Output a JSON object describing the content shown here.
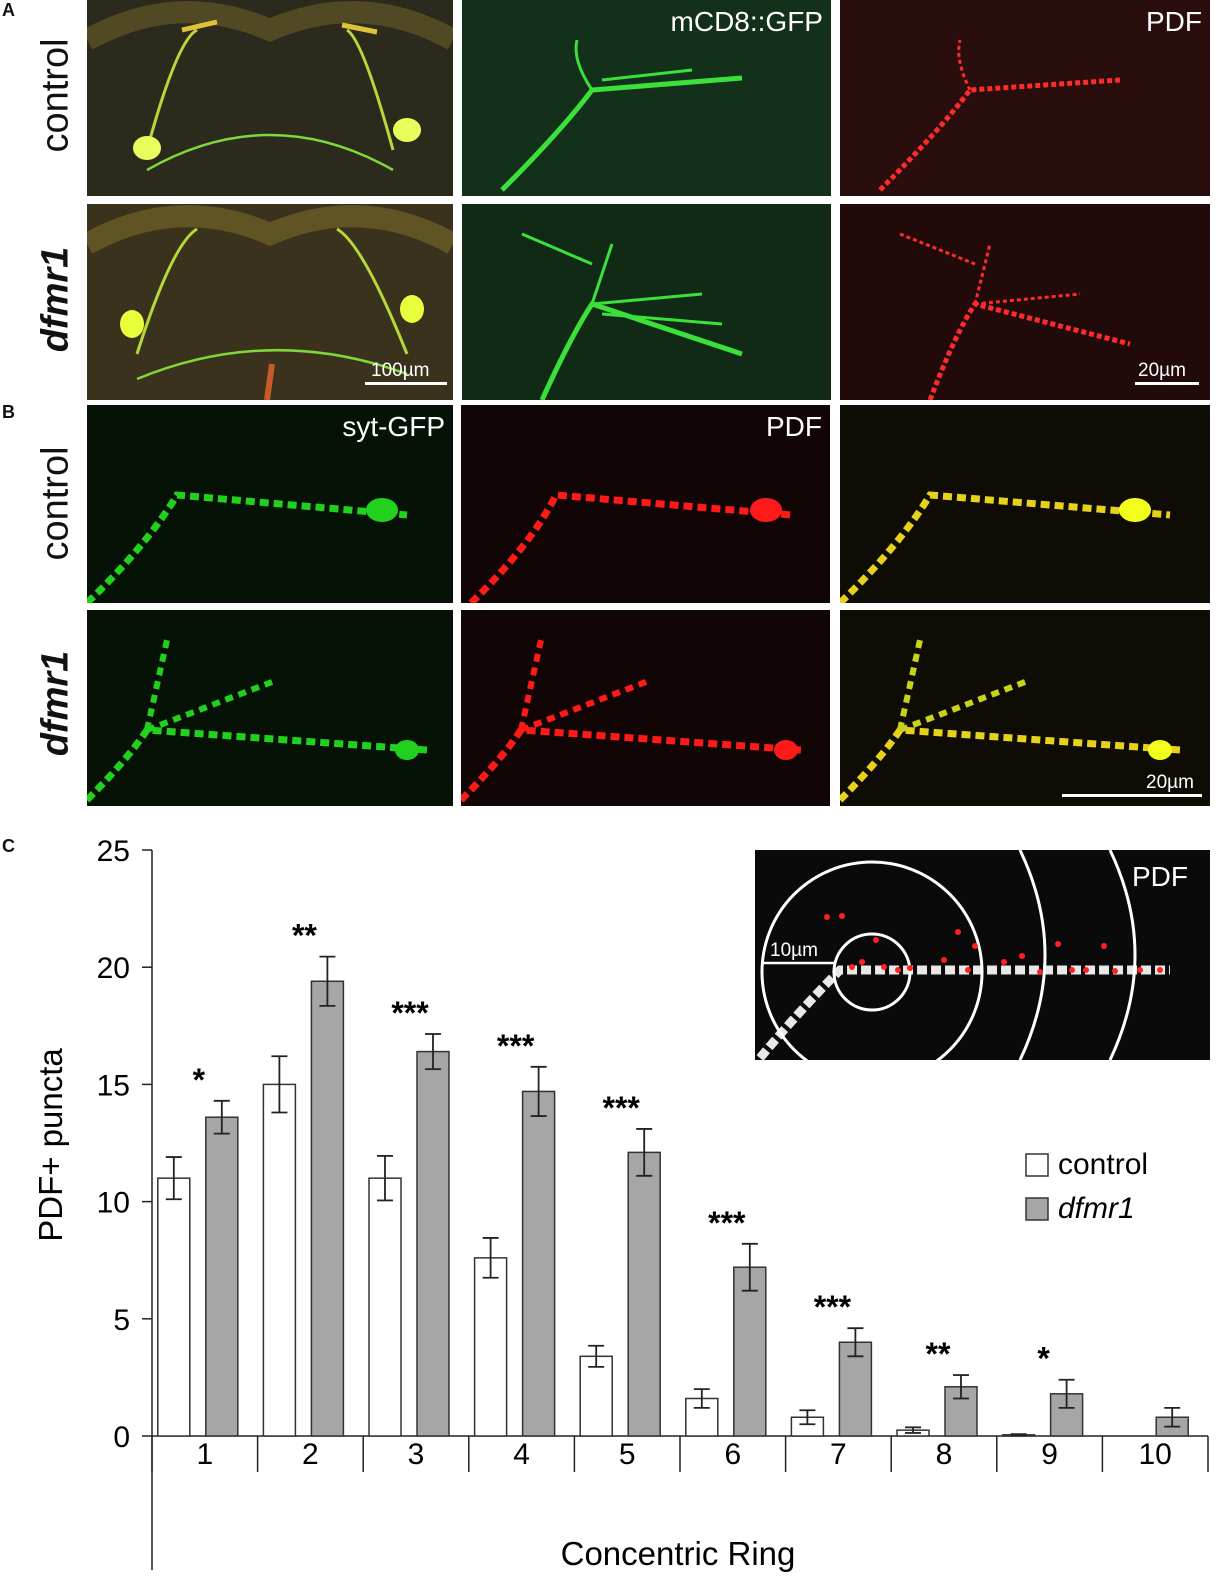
{
  "panels": {
    "a": {
      "letter": "A"
    },
    "b": {
      "letter": "B"
    },
    "c": {
      "letter": "C"
    }
  },
  "rows": {
    "control": "control",
    "dfmr1": "dfmr1"
  },
  "channel_labels": {
    "mcd8": "mCD8::GFP",
    "pdf_a": "PDF",
    "sytgfp": "syt-GFP",
    "pdf_b": "PDF"
  },
  "scale_bars": {
    "a_brain": "100µm",
    "a_zoom": "20µm",
    "b": "20µm"
  },
  "inset": {
    "label": "PDF",
    "scale_label": "10µm"
  },
  "colors": {
    "control_fill": "#ffffff",
    "dfmr1_fill": "#a6a6a6",
    "gfp": "#22d11e",
    "pdf": "#ff1a1a",
    "merge": "#e6d21a"
  },
  "chart_data": {
    "type": "bar",
    "categories": [
      "1",
      "2",
      "3",
      "4",
      "5",
      "6",
      "7",
      "8",
      "9",
      "10"
    ],
    "xlabel": "Concentric Ring",
    "ylabel": "PDF+ puncta",
    "ylim": [
      0,
      25
    ],
    "yticks": [
      "0",
      "5",
      "10",
      "15",
      "20",
      "25"
    ],
    "legend_position": "right",
    "series": [
      {
        "name": "control",
        "values": [
          11.0,
          15.0,
          11.0,
          7.6,
          3.4,
          1.6,
          0.8,
          0.25,
          0.05,
          0
        ],
        "errors": [
          0.9,
          1.2,
          0.95,
          0.85,
          0.45,
          0.4,
          0.3,
          0.12,
          0.03,
          0
        ]
      },
      {
        "name": "dfmr1",
        "values": [
          13.6,
          19.4,
          16.4,
          14.7,
          12.1,
          7.2,
          4.0,
          2.1,
          1.8,
          0.8
        ],
        "errors": [
          0.7,
          1.05,
          0.75,
          1.05,
          1.0,
          1.0,
          0.6,
          0.5,
          0.6,
          0.4
        ]
      }
    ],
    "significance": [
      "*",
      "**",
      "***",
      "***",
      "***",
      "***",
      "***",
      "**",
      "*",
      ""
    ]
  }
}
